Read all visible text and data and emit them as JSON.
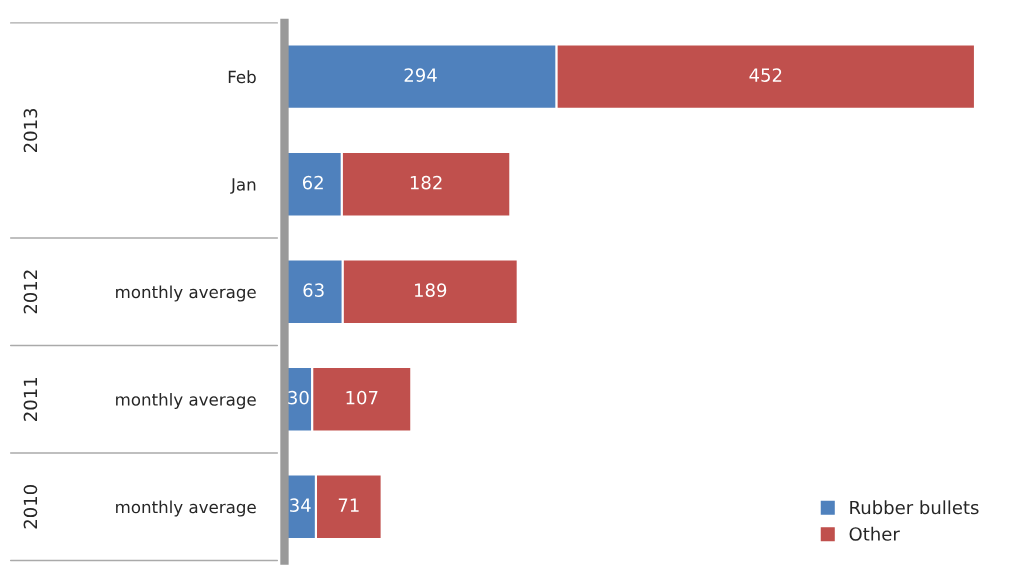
{
  "chart_data": {
    "type": "bar",
    "orientation": "horizontal",
    "stacked": true,
    "categories": [
      "Feb",
      "Jan",
      "monthly average",
      "monthly average",
      "monthly average"
    ],
    "series": [
      {
        "name": "Rubber bullets",
        "color": "#4f81bd",
        "values": [
          294,
          62,
          63,
          30,
          34
        ]
      },
      {
        "name": "Other",
        "color": "#c0504d",
        "values": [
          452,
          182,
          189,
          107,
          71
        ]
      }
    ],
    "annotations": [
      "2013",
      "2012",
      "2011",
      "2010"
    ],
    "data_labels": true,
    "legend": "bottom right",
    "grid": false,
    "tick_labels": "y"
  }
}
